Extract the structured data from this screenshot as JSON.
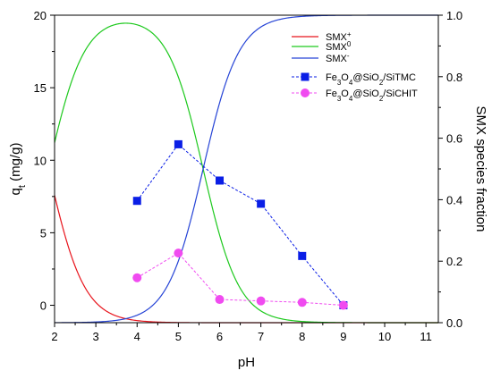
{
  "chart_data": {
    "type": "line",
    "xlabel": "pH",
    "ylabel_left": {
      "base": "q",
      "sub": "t",
      "rest": " (mg/g)"
    },
    "ylabel_right": "SMX species fraction",
    "xlim": [
      2,
      11.3
    ],
    "ylim_left": [
      -1.2,
      20
    ],
    "ylim_right": [
      0,
      1.0
    ],
    "x_ticks": [
      2,
      3,
      4,
      5,
      6,
      7,
      8,
      9,
      10,
      11
    ],
    "y_left_ticks": [
      0,
      5,
      10,
      15,
      20
    ],
    "y_right_ticks": [
      0.0,
      0.2,
      0.4,
      0.6,
      0.8,
      1.0
    ],
    "y_right_tick_labels": [
      "0.0",
      "0.2",
      "0.4",
      "0.6",
      "0.8",
      "1.0"
    ],
    "grid": false,
    "legend_position": "top-right",
    "species": {
      "pKa1": 1.85,
      "pKa2": 5.6,
      "series": [
        {
          "key": "cation",
          "base": "SMX",
          "sup": "+",
          "color": "#e8141c"
        },
        {
          "key": "neutral",
          "base": "SMX",
          "sup": "0",
          "color": "#1dc91d"
        },
        {
          "key": "anion",
          "base": "SMX",
          "sup": "-",
          "color": "#2644d6"
        }
      ]
    },
    "adsorption_series": [
      {
        "name_parts": [
          "Fe",
          "3",
          "O",
          "4",
          "@SiO",
          "2",
          "/SiTMC"
        ],
        "color": "#0a1ee6",
        "marker": "square",
        "x": [
          4,
          5,
          6,
          7,
          8,
          9
        ],
        "y": [
          7.2,
          11.1,
          8.6,
          7.0,
          3.4,
          0.0
        ]
      },
      {
        "name_parts": [
          "Fe",
          "3",
          "O",
          "4",
          "@SiO",
          "2",
          "/SiCHIT"
        ],
        "color": "#f04bf0",
        "marker": "circle",
        "x": [
          4,
          5,
          6,
          7,
          8,
          9
        ],
        "y": [
          1.9,
          3.6,
          0.4,
          0.3,
          0.2,
          0.0
        ]
      }
    ]
  }
}
